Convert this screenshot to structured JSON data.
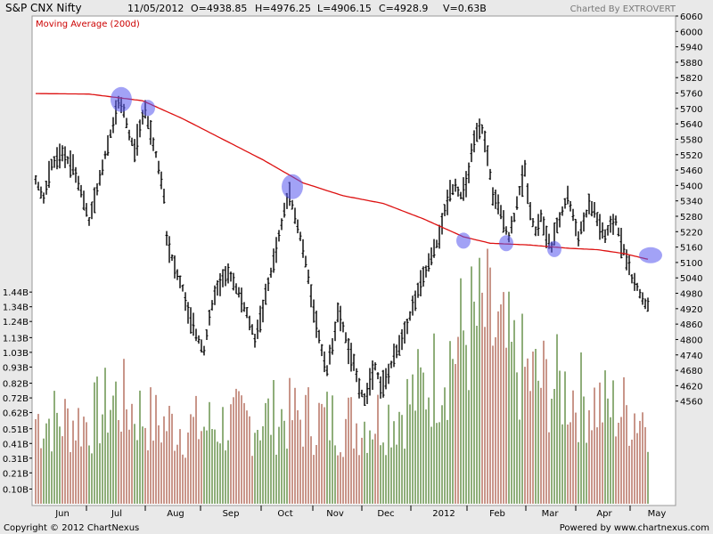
{
  "header": {
    "title": "S&P CNX Nifty",
    "date": "11/05/2012",
    "open": "O=4938.85",
    "high": "H=4976.25",
    "low": "L=4906.15",
    "close": "C=4928.9",
    "volume": "V=0.63B",
    "credit": "Charted By EXTROVERT"
  },
  "footer": {
    "copyright": "Copyright © 2012 ChartNexus",
    "powered": "Powered by www.chartnexus.com"
  },
  "colors": {
    "price_bar": "#000000",
    "moving_average": "#dd1111",
    "volume_up": "#8fae7a",
    "volume_down": "#c9968a",
    "highlight": "#5555ee",
    "plot_bg": "#ffffff",
    "chrome_bg": "#e9e9e9"
  },
  "chart_data": {
    "type": "ohlc-with-volume",
    "indicator": "Moving Average (200d)",
    "price_axis": {
      "ticks": [
        4560,
        4620,
        4680,
        4740,
        4800,
        4860,
        4920,
        4980,
        5040,
        5100,
        5160,
        5220,
        5280,
        5340,
        5400,
        5460,
        5520,
        5580,
        5640,
        5700,
        5760,
        5820,
        5880,
        5940,
        6000,
        6060
      ],
      "ylim": [
        4500,
        6060
      ]
    },
    "volume_axis": {
      "ticks": [
        "0.10B",
        "0.21B",
        "0.31B",
        "0.41B",
        "0.51B",
        "0.62B",
        "0.72B",
        "0.82B",
        "0.93B",
        "1.03B",
        "1.13B",
        "1.24B",
        "1.34B",
        "1.44B"
      ],
      "tick_values": [
        0.1,
        0.21,
        0.31,
        0.41,
        0.51,
        0.62,
        0.72,
        0.82,
        0.93,
        1.03,
        1.13,
        1.24,
        1.34,
        1.44
      ],
      "ylim": [
        0,
        1.55
      ]
    },
    "x_axis": {
      "labels": [
        "Jun",
        "Jul",
        "Aug",
        "Sep",
        "Oct",
        "Nov",
        "Dec",
        "2012",
        "Feb",
        "Mar",
        "Apr",
        "May"
      ],
      "day_range": [
        0,
        236
      ]
    },
    "price_keypoints": [
      {
        "d": 0,
        "p": 5420
      },
      {
        "d": 3,
        "p": 5350
      },
      {
        "d": 6,
        "p": 5480
      },
      {
        "d": 10,
        "p": 5520
      },
      {
        "d": 14,
        "p": 5480
      },
      {
        "d": 17,
        "p": 5380
      },
      {
        "d": 20,
        "p": 5260
      },
      {
        "d": 23,
        "p": 5380
      },
      {
        "d": 26,
        "p": 5520
      },
      {
        "d": 29,
        "p": 5640
      },
      {
        "d": 31,
        "p": 5720
      },
      {
        "d": 33,
        "p": 5690
      },
      {
        "d": 35,
        "p": 5600
      },
      {
        "d": 37,
        "p": 5540
      },
      {
        "d": 39,
        "p": 5620
      },
      {
        "d": 41,
        "p": 5700
      },
      {
        "d": 43,
        "p": 5600
      },
      {
        "d": 45,
        "p": 5520
      },
      {
        "d": 47,
        "p": 5420
      },
      {
        "d": 48,
        "p": 5360
      },
      {
        "d": 49,
        "p": 5200
      },
      {
        "d": 51,
        "p": 5120
      },
      {
        "d": 53,
        "p": 5050
      },
      {
        "d": 55,
        "p": 5000
      },
      {
        "d": 57,
        "p": 4900
      },
      {
        "d": 60,
        "p": 4820
      },
      {
        "d": 63,
        "p": 4760
      },
      {
        "d": 65,
        "p": 4880
      },
      {
        "d": 67,
        "p": 4980
      },
      {
        "d": 70,
        "p": 5040
      },
      {
        "d": 73,
        "p": 5050
      },
      {
        "d": 76,
        "p": 4980
      },
      {
        "d": 79,
        "p": 4900
      },
      {
        "d": 82,
        "p": 4800
      },
      {
        "d": 85,
        "p": 4920
      },
      {
        "d": 88,
        "p": 5060
      },
      {
        "d": 91,
        "p": 5200
      },
      {
        "d": 93,
        "p": 5300
      },
      {
        "d": 95,
        "p": 5380
      },
      {
        "d": 97,
        "p": 5280
      },
      {
        "d": 99,
        "p": 5200
      },
      {
        "d": 101,
        "p": 5100
      },
      {
        "d": 103,
        "p": 4980
      },
      {
        "d": 105,
        "p": 4860
      },
      {
        "d": 107,
        "p": 4760
      },
      {
        "d": 109,
        "p": 4680
      },
      {
        "d": 111,
        "p": 4780
      },
      {
        "d": 113,
        "p": 4900
      },
      {
        "d": 115,
        "p": 4850
      },
      {
        "d": 117,
        "p": 4760
      },
      {
        "d": 119,
        "p": 4700
      },
      {
        "d": 121,
        "p": 4620
      },
      {
        "d": 123,
        "p": 4560
      },
      {
        "d": 125,
        "p": 4640
      },
      {
        "d": 127,
        "p": 4700
      },
      {
        "d": 129,
        "p": 4620
      },
      {
        "d": 131,
        "p": 4640
      },
      {
        "d": 133,
        "p": 4700
      },
      {
        "d": 136,
        "p": 4780
      },
      {
        "d": 139,
        "p": 4860
      },
      {
        "d": 142,
        "p": 4960
      },
      {
        "d": 145,
        "p": 5040
      },
      {
        "d": 148,
        "p": 5120
      },
      {
        "d": 151,
        "p": 5200
      },
      {
        "d": 153,
        "p": 5300
      },
      {
        "d": 155,
        "p": 5380
      },
      {
        "d": 157,
        "p": 5400
      },
      {
        "d": 159,
        "p": 5360
      },
      {
        "d": 161,
        "p": 5400
      },
      {
        "d": 163,
        "p": 5520
      },
      {
        "d": 165,
        "p": 5600
      },
      {
        "d": 167,
        "p": 5620
      },
      {
        "d": 169,
        "p": 5520
      },
      {
        "d": 171,
        "p": 5360
      },
      {
        "d": 173,
        "p": 5320
      },
      {
        "d": 175,
        "p": 5260
      },
      {
        "d": 177,
        "p": 5200
      },
      {
        "d": 179,
        "p": 5280
      },
      {
        "d": 181,
        "p": 5380
      },
      {
        "d": 183,
        "p": 5460
      },
      {
        "d": 185,
        "p": 5300
      },
      {
        "d": 187,
        "p": 5220
      },
      {
        "d": 189,
        "p": 5280
      },
      {
        "d": 191,
        "p": 5200
      },
      {
        "d": 193,
        "p": 5160
      },
      {
        "d": 195,
        "p": 5240
      },
      {
        "d": 197,
        "p": 5300
      },
      {
        "d": 199,
        "p": 5360
      },
      {
        "d": 201,
        "p": 5280
      },
      {
        "d": 203,
        "p": 5200
      },
      {
        "d": 205,
        "p": 5260
      },
      {
        "d": 207,
        "p": 5320
      },
      {
        "d": 209,
        "p": 5300
      },
      {
        "d": 211,
        "p": 5240
      },
      {
        "d": 213,
        "p": 5200
      },
      {
        "d": 215,
        "p": 5240
      },
      {
        "d": 217,
        "p": 5260
      },
      {
        "d": 219,
        "p": 5180
      },
      {
        "d": 221,
        "p": 5120
      },
      {
        "d": 223,
        "p": 5040
      },
      {
        "d": 225,
        "p": 5000
      },
      {
        "d": 227,
        "p": 4960
      },
      {
        "d": 229,
        "p": 4928
      }
    ],
    "moving_average_keypoints": [
      {
        "d": 0,
        "p": 5758
      },
      {
        "d": 20,
        "p": 5756
      },
      {
        "d": 40,
        "p": 5730
      },
      {
        "d": 55,
        "p": 5660
      },
      {
        "d": 70,
        "p": 5580
      },
      {
        "d": 85,
        "p": 5500
      },
      {
        "d": 100,
        "p": 5410
      },
      {
        "d": 115,
        "p": 5360
      },
      {
        "d": 130,
        "p": 5330
      },
      {
        "d": 145,
        "p": 5270
      },
      {
        "d": 160,
        "p": 5200
      },
      {
        "d": 170,
        "p": 5175
      },
      {
        "d": 185,
        "p": 5168
      },
      {
        "d": 200,
        "p": 5155
      },
      {
        "d": 210,
        "p": 5150
      },
      {
        "d": 220,
        "p": 5135
      },
      {
        "d": 230,
        "p": 5110
      }
    ],
    "volume_keypoints": [
      {
        "d": 0,
        "v": 0.58
      },
      {
        "d": 20,
        "v": 0.56
      },
      {
        "d": 30,
        "v": 0.72
      },
      {
        "d": 45,
        "v": 0.55
      },
      {
        "d": 60,
        "v": 0.52
      },
      {
        "d": 75,
        "v": 0.55
      },
      {
        "d": 90,
        "v": 0.6
      },
      {
        "d": 105,
        "v": 0.58
      },
      {
        "d": 120,
        "v": 0.55
      },
      {
        "d": 135,
        "v": 0.62
      },
      {
        "d": 150,
        "v": 0.88
      },
      {
        "d": 160,
        "v": 1.15
      },
      {
        "d": 168,
        "v": 1.25
      },
      {
        "d": 176,
        "v": 1.02
      },
      {
        "d": 185,
        "v": 0.85
      },
      {
        "d": 195,
        "v": 0.8
      },
      {
        "d": 205,
        "v": 0.72
      },
      {
        "d": 215,
        "v": 0.65
      },
      {
        "d": 225,
        "v": 0.62
      },
      {
        "d": 236,
        "v": 0.6
      }
    ],
    "highlights": [
      {
        "d": 32,
        "p": 5735,
        "size": "large"
      },
      {
        "d": 42,
        "p": 5702,
        "size": "small"
      },
      {
        "d": 96,
        "p": 5395,
        "size": "large"
      },
      {
        "d": 160,
        "p": 5185,
        "size": "small"
      },
      {
        "d": 176,
        "p": 5175,
        "size": "small"
      },
      {
        "d": 194,
        "p": 5152,
        "size": "small"
      },
      {
        "d": 230,
        "p": 5128,
        "size": "wide"
      }
    ]
  }
}
